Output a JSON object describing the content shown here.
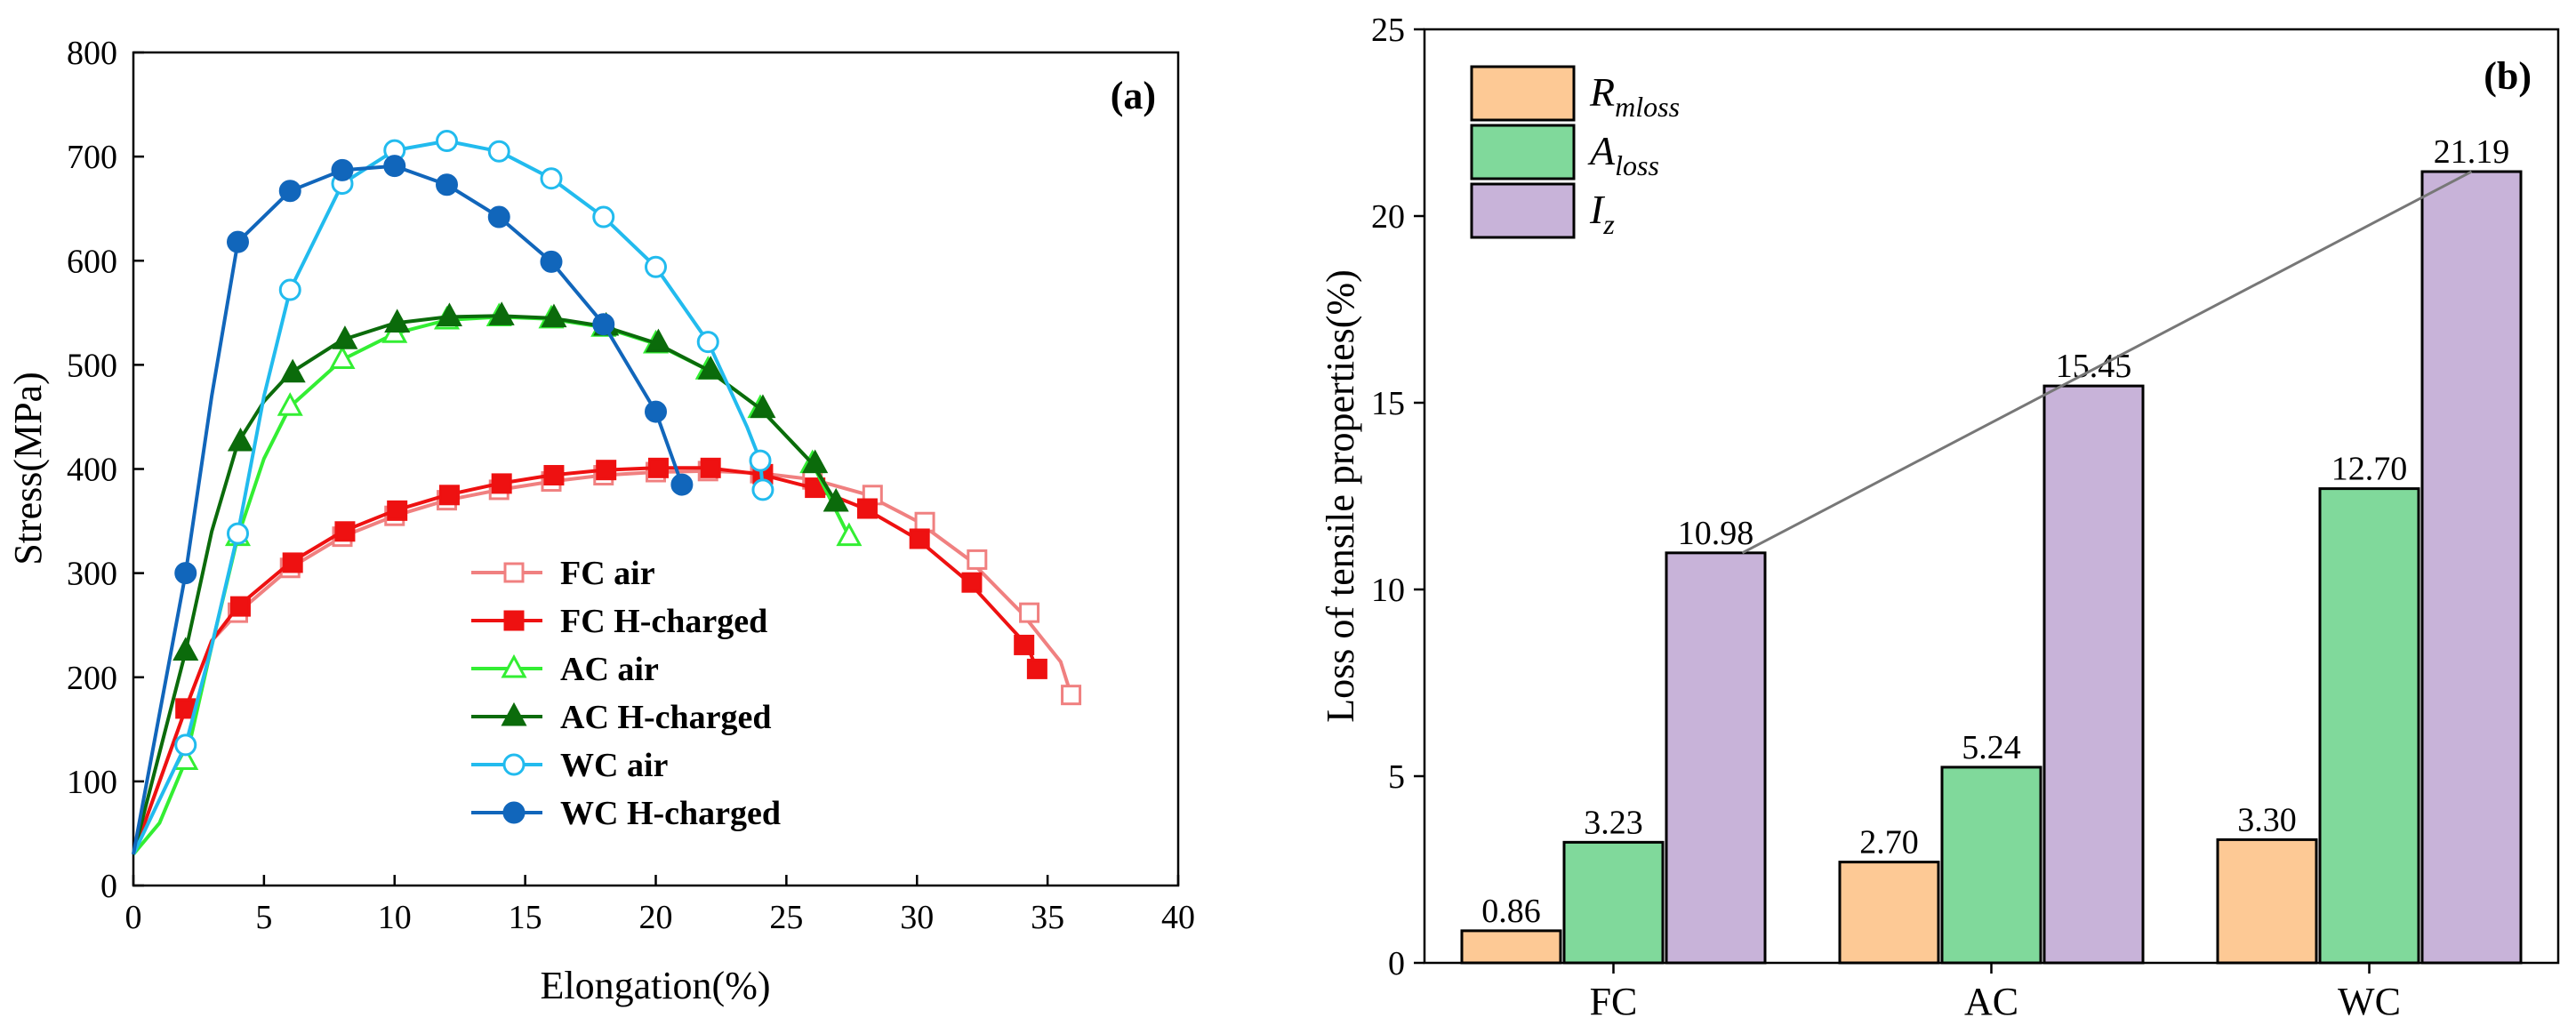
{
  "chart_data": [
    {
      "type": "line",
      "panel_label": "(a)",
      "xlabel": "Elongation(%)",
      "ylabel": "Stress(MPa)",
      "xlim": [
        0,
        40
      ],
      "ylim": [
        0,
        800
      ],
      "xticks": [
        0,
        5,
        10,
        15,
        20,
        25,
        30,
        35,
        40
      ],
      "yticks": [
        0,
        100,
        200,
        300,
        400,
        500,
        600,
        700,
        800
      ],
      "grid": false,
      "legend_position": "center-right",
      "series": [
        {
          "name": "FC air",
          "color": "#f08080",
          "marker": "square-open",
          "points": [
            [
              0,
              30
            ],
            [
              2,
              170
            ],
            [
              3,
              235
            ],
            [
              4,
              262
            ],
            [
              6,
              305
            ],
            [
              8,
              335
            ],
            [
              10,
              355
            ],
            [
              12,
              370
            ],
            [
              14,
              380
            ],
            [
              16,
              388
            ],
            [
              18,
              394
            ],
            [
              20,
              397
            ],
            [
              22,
              398
            ],
            [
              24,
              396
            ],
            [
              26,
              390
            ],
            [
              28,
              376
            ],
            [
              30,
              350
            ],
            [
              32,
              313
            ],
            [
              34,
              262
            ],
            [
              35.5,
              215
            ],
            [
              35.9,
              183
            ]
          ],
          "markers": [
            [
              2,
              170
            ],
            [
              4,
              262
            ],
            [
              6,
              305
            ],
            [
              8,
              335
            ],
            [
              10,
              355
            ],
            [
              12,
              370
            ],
            [
              14,
              380
            ],
            [
              16,
              388
            ],
            [
              18,
              394
            ],
            [
              20,
              397
            ],
            [
              22,
              398
            ],
            [
              24,
              396
            ],
            [
              26,
              390
            ],
            [
              28.3,
              375
            ],
            [
              30.3,
              349
            ],
            [
              32.3,
              313
            ],
            [
              34.3,
              262
            ],
            [
              35.9,
              183
            ]
          ]
        },
        {
          "name": "FC H-charged",
          "color": "#ee1111",
          "marker": "square-filled",
          "points": [
            [
              0,
              30
            ],
            [
              2,
              170
            ],
            [
              3,
              235
            ],
            [
              4,
              268
            ],
            [
              6,
              310
            ],
            [
              8,
              340
            ],
            [
              10,
              360
            ],
            [
              12,
              375
            ],
            [
              14,
              386
            ],
            [
              16,
              394
            ],
            [
              18,
              399
            ],
            [
              20,
              401
            ],
            [
              22,
              401
            ],
            [
              24,
              395
            ],
            [
              26,
              382
            ],
            [
              28,
              362
            ],
            [
              30,
              333
            ],
            [
              32,
              291
            ],
            [
              33.5,
              250
            ],
            [
              34.2,
              231
            ],
            [
              34.6,
              208
            ]
          ],
          "markers": [
            [
              2,
              170
            ],
            [
              4.1,
              268
            ],
            [
              6.1,
              310
            ],
            [
              8.1,
              340
            ],
            [
              10.1,
              360
            ],
            [
              12.1,
              375
            ],
            [
              14.1,
              386
            ],
            [
              16.1,
              394
            ],
            [
              18.1,
              399
            ],
            [
              20.1,
              401
            ],
            [
              22.1,
              401
            ],
            [
              24.1,
              395
            ],
            [
              26.1,
              382
            ],
            [
              28.1,
              362
            ],
            [
              30.1,
              333
            ],
            [
              32.1,
              291
            ],
            [
              34.1,
              231
            ],
            [
              34.6,
              208
            ]
          ]
        },
        {
          "name": "AC air",
          "color": "#33ee33",
          "marker": "triangle-open",
          "points": [
            [
              0,
              30
            ],
            [
              1,
              60
            ],
            [
              2,
              120
            ],
            [
              3,
              230
            ],
            [
              4,
              335
            ],
            [
              5,
              410
            ],
            [
              6,
              460
            ],
            [
              8,
              505
            ],
            [
              10,
              530
            ],
            [
              12,
              543
            ],
            [
              14,
              546
            ],
            [
              16,
              544
            ],
            [
              18,
              536
            ],
            [
              20,
              520
            ],
            [
              22,
              495
            ],
            [
              24,
              458
            ],
            [
              26,
              405
            ],
            [
              27.4,
              335
            ]
          ],
          "markers": [
            [
              2,
              120
            ],
            [
              4,
              335
            ],
            [
              6,
              460
            ],
            [
              8,
              505
            ],
            [
              10,
              530
            ],
            [
              12,
              543
            ],
            [
              14,
              546
            ],
            [
              16,
              544
            ],
            [
              18,
              536
            ],
            [
              20,
              520
            ],
            [
              22,
              495
            ],
            [
              24,
              458
            ],
            [
              26,
              405
            ],
            [
              27.4,
              335
            ]
          ]
        },
        {
          "name": "AC H-charged",
          "color": "#0b6b0b",
          "marker": "triangle-filled",
          "points": [
            [
              0,
              30
            ],
            [
              2,
              225
            ],
            [
              3,
              340
            ],
            [
              4,
              425
            ],
            [
              5,
              465
            ],
            [
              6,
              492
            ],
            [
              8,
              524
            ],
            [
              10,
              540
            ],
            [
              12,
              546
            ],
            [
              14,
              547
            ],
            [
              16,
              545
            ],
            [
              18,
              537
            ],
            [
              20,
              521
            ],
            [
              22,
              495
            ],
            [
              24,
              458
            ],
            [
              26,
              405
            ],
            [
              26.9,
              368
            ]
          ],
          "markers": [
            [
              2,
              225
            ],
            [
              4.1,
              426
            ],
            [
              6.1,
              492
            ],
            [
              8.1,
              524
            ],
            [
              10.1,
              540
            ],
            [
              12.1,
              546
            ],
            [
              14.1,
              547
            ],
            [
              16.1,
              545
            ],
            [
              18.1,
              537
            ],
            [
              20.1,
              521
            ],
            [
              22.1,
              495
            ],
            [
              24.1,
              458
            ],
            [
              26.1,
              405
            ],
            [
              26.9,
              368
            ]
          ]
        },
        {
          "name": "WC air",
          "color": "#22bbee",
          "marker": "circle-open",
          "points": [
            [
              0,
              30
            ],
            [
              2,
              135
            ],
            [
              3,
              230
            ],
            [
              4,
              338
            ],
            [
              5,
              470
            ],
            [
              6,
              572
            ],
            [
              8,
              674
            ],
            [
              10,
              706
            ],
            [
              12,
              715
            ],
            [
              14,
              705
            ],
            [
              16,
              679
            ],
            [
              18,
              642
            ],
            [
              20,
              594
            ],
            [
              22,
              522
            ],
            [
              23.5,
              440
            ],
            [
              24,
              408
            ],
            [
              24.1,
              380
            ]
          ],
          "markers": [
            [
              2,
              135
            ],
            [
              4,
              338
            ],
            [
              6,
              572
            ],
            [
              8,
              674
            ],
            [
              10,
              706
            ],
            [
              12,
              715
            ],
            [
              14,
              705
            ],
            [
              16,
              679
            ],
            [
              18,
              642
            ],
            [
              20,
              594
            ],
            [
              22,
              522
            ],
            [
              24,
              408
            ],
            [
              24.1,
              380
            ]
          ]
        },
        {
          "name": "WC H-charged",
          "color": "#1166bb",
          "marker": "circle-filled",
          "points": [
            [
              0,
              30
            ],
            [
              2,
              300
            ],
            [
              3,
              470
            ],
            [
              4,
              618
            ],
            [
              6,
              667
            ],
            [
              8,
              687
            ],
            [
              10,
              691
            ],
            [
              12,
              673
            ],
            [
              14,
              642
            ],
            [
              16,
              599
            ],
            [
              18,
              539
            ],
            [
              20,
              455
            ],
            [
              21,
              385
            ]
          ],
          "markers": [
            [
              2,
              300
            ],
            [
              4,
              618
            ],
            [
              6,
              667
            ],
            [
              8,
              687
            ],
            [
              10,
              691
            ],
            [
              12,
              673
            ],
            [
              14,
              642
            ],
            [
              16,
              599
            ],
            [
              18,
              539
            ],
            [
              20,
              455
            ],
            [
              21,
              385
            ]
          ]
        }
      ]
    },
    {
      "type": "bar",
      "panel_label": "(b)",
      "xlabel": "",
      "ylabel": "Loss of tensile properties(%)",
      "categories": [
        "FC",
        "AC",
        "WC"
      ],
      "ylim": [
        0,
        25
      ],
      "yticks": [
        0,
        5,
        10,
        15,
        20,
        25
      ],
      "grid": false,
      "legend_position": "top-left",
      "series": [
        {
          "name": "R",
          "subscript": "mloss",
          "color": "#fdc995",
          "values": [
            0.86,
            2.7,
            3.3
          ],
          "labels": [
            "0.86",
            "2.70",
            "3.30"
          ]
        },
        {
          "name": "A",
          "subscript": "loss",
          "color": "#80d99b",
          "values": [
            3.23,
            5.24,
            12.7
          ],
          "labels": [
            "3.23",
            "5.24",
            "12.70"
          ]
        },
        {
          "name": "I",
          "subscript": "z",
          "color": "#c8b3d9",
          "values": [
            10.98,
            15.45,
            21.19
          ],
          "labels": [
            "10.98",
            "15.45",
            "21.19"
          ]
        }
      ],
      "trend_line": {
        "series": "I",
        "color": "#777777"
      }
    }
  ]
}
